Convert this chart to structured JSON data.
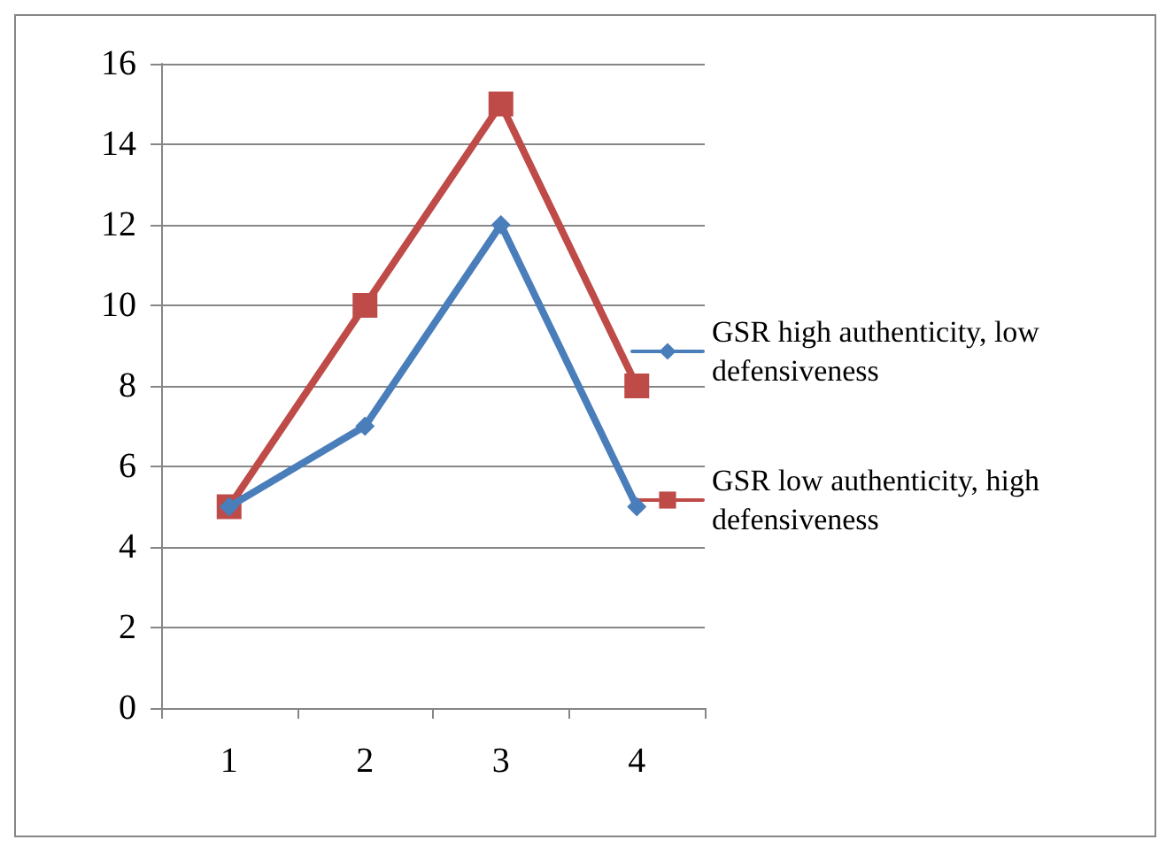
{
  "chart_data": {
    "type": "line",
    "categories": [
      "1",
      "2",
      "3",
      "4"
    ],
    "series": [
      {
        "name": "GSR high authenticity, low defensiveness",
        "color": "#4a7ebb",
        "marker": "diamond",
        "values": [
          5,
          7,
          12,
          5
        ]
      },
      {
        "name": "GSR low authenticity, high defensiveness",
        "color": "#be4b48",
        "marker": "square",
        "values": [
          5,
          10,
          15,
          8
        ]
      }
    ],
    "ylim": [
      0,
      16
    ],
    "yticks": [
      0,
      2,
      4,
      6,
      8,
      10,
      12,
      14,
      16
    ],
    "grid": "y",
    "legend": "right",
    "line_style": "solid"
  }
}
